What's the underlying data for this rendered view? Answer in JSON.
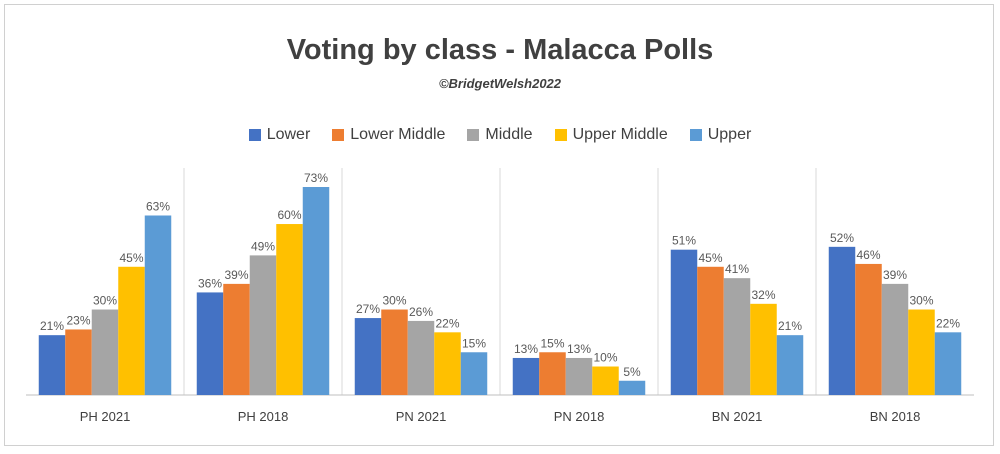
{
  "chart_data": {
    "type": "bar",
    "title": "Voting by class - Malacca Polls",
    "subtitle": "©BridgetWelsh2022",
    "categories": [
      "PH 2021",
      "PH 2018",
      "PN 2021",
      "PN 2018",
      "BN 2021",
      "BN 2018"
    ],
    "series": [
      {
        "name": "Lower",
        "color": "#4472C4",
        "values": [
          21,
          36,
          27,
          13,
          51,
          52
        ]
      },
      {
        "name": "Lower Middle",
        "color": "#ED7D31",
        "values": [
          23,
          39,
          30,
          15,
          45,
          46
        ]
      },
      {
        "name": "Middle",
        "color": "#A5A5A5",
        "values": [
          30,
          49,
          26,
          13,
          41,
          39
        ]
      },
      {
        "name": "Upper Middle",
        "color": "#FFC000",
        "values": [
          45,
          60,
          22,
          10,
          32,
          30
        ]
      },
      {
        "name": "Upper",
        "color": "#5B9BD5",
        "values": [
          63,
          73,
          15,
          5,
          21,
          22
        ]
      }
    ],
    "value_suffix": "%",
    "ylim": [
      0,
      75
    ],
    "grid": false,
    "legend_position": "top"
  }
}
